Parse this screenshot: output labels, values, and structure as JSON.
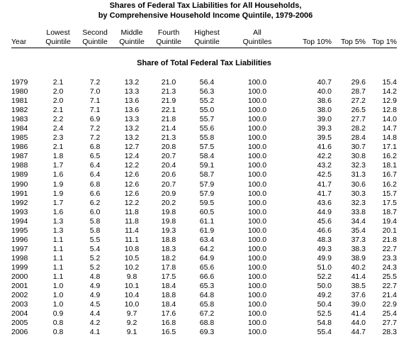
{
  "title_line1": "Shares of Federal Tax Liabilities for All Households,",
  "title_line2": "by Comprehensive Household Income Quintile, 1979-2006",
  "section_title": "Share of Total Federal Tax Liabilities",
  "headers": [
    {
      "top": "",
      "bottom": "Year"
    },
    {
      "top": "Lowest",
      "bottom": "Quintile"
    },
    {
      "top": "Second",
      "bottom": "Quintile"
    },
    {
      "top": "Middle",
      "bottom": "Quintile"
    },
    {
      "top": "Fourth",
      "bottom": "Quintile"
    },
    {
      "top": "Highest",
      "bottom": "Quintile"
    },
    {
      "top": "All",
      "bottom": "Quintiles"
    },
    {
      "top": "",
      "bottom": "Top 10%"
    },
    {
      "top": "",
      "bottom": "Top 5%"
    },
    {
      "top": "",
      "bottom": "Top 1%"
    }
  ],
  "rows": [
    [
      "1979",
      "2.1",
      "7.2",
      "13.2",
      "21.0",
      "56.4",
      "100.0",
      "40.7",
      "29.6",
      "15.4"
    ],
    [
      "1980",
      "2.0",
      "7.0",
      "13.3",
      "21.3",
      "56.3",
      "100.0",
      "40.0",
      "28.7",
      "14.2"
    ],
    [
      "1981",
      "2.0",
      "7.1",
      "13.6",
      "21.9",
      "55.2",
      "100.0",
      "38.6",
      "27.2",
      "12.9"
    ],
    [
      "1982",
      "2.1",
      "7.1",
      "13.6",
      "22.1",
      "55.0",
      "100.0",
      "38.0",
      "26.5",
      "12.8"
    ],
    [
      "1983",
      "2.2",
      "6.9",
      "13.3",
      "21.8",
      "55.7",
      "100.0",
      "39.0",
      "27.7",
      "14.0"
    ],
    [
      "1984",
      "2.4",
      "7.2",
      "13.2",
      "21.4",
      "55.6",
      "100.0",
      "39.3",
      "28.2",
      "14.7"
    ],
    [
      "1985",
      "2.3",
      "7.2",
      "13.2",
      "21.3",
      "55.8",
      "100.0",
      "39.5",
      "28.4",
      "14.8"
    ],
    [
      "1986",
      "2.1",
      "6.8",
      "12.7",
      "20.8",
      "57.5",
      "100.0",
      "41.6",
      "30.7",
      "17.1"
    ],
    [
      "1987",
      "1.8",
      "6.5",
      "12.4",
      "20.7",
      "58.4",
      "100.0",
      "42.2",
      "30.8",
      "16.2"
    ],
    [
      "1988",
      "1.7",
      "6.4",
      "12.2",
      "20.4",
      "59.1",
      "100.0",
      "43.2",
      "32.3",
      "18.1"
    ],
    [
      "1989",
      "1.6",
      "6.4",
      "12.6",
      "20.6",
      "58.7",
      "100.0",
      "42.5",
      "31.3",
      "16.7"
    ],
    [
      "1990",
      "1.9",
      "6.8",
      "12.6",
      "20.7",
      "57.9",
      "100.0",
      "41.7",
      "30.6",
      "16.2"
    ],
    [
      "1991",
      "1.9",
      "6.6",
      "12.6",
      "20.9",
      "57.9",
      "100.0",
      "41.7",
      "30.3",
      "15.7"
    ],
    [
      "1992",
      "1.7",
      "6.2",
      "12.2",
      "20.2",
      "59.5",
      "100.0",
      "43.6",
      "32.3",
      "17.5"
    ],
    [
      "1993",
      "1.6",
      "6.0",
      "11.8",
      "19.8",
      "60.5",
      "100.0",
      "44.9",
      "33.8",
      "18.7"
    ],
    [
      "1994",
      "1.3",
      "5.8",
      "11.8",
      "19.8",
      "61.1",
      "100.0",
      "45.6",
      "34.4",
      "19.4"
    ],
    [
      "1995",
      "1.3",
      "5.8",
      "11.4",
      "19.3",
      "61.9",
      "100.0",
      "46.6",
      "35.4",
      "20.1"
    ],
    [
      "1996",
      "1.1",
      "5.5",
      "11.1",
      "18.8",
      "63.4",
      "100.0",
      "48.3",
      "37.3",
      "21.8"
    ],
    [
      "1997",
      "1.1",
      "5.4",
      "10.8",
      "18.3",
      "64.2",
      "100.0",
      "49.3",
      "38.3",
      "22.7"
    ],
    [
      "1998",
      "1.1",
      "5.2",
      "10.5",
      "18.2",
      "64.9",
      "100.0",
      "49.9",
      "38.9",
      "23.3"
    ],
    [
      "1999",
      "1.1",
      "5.2",
      "10.2",
      "17.8",
      "65.6",
      "100.0",
      "51.0",
      "40.2",
      "24.3"
    ],
    [
      "2000",
      "1.1",
      "4.8",
      "9.8",
      "17.5",
      "66.6",
      "100.0",
      "52.2",
      "41.4",
      "25.5"
    ],
    [
      "2001",
      "1.0",
      "4.9",
      "10.1",
      "18.4",
      "65.3",
      "100.0",
      "50.0",
      "38.5",
      "22.7"
    ],
    [
      "2002",
      "1.0",
      "4.9",
      "10.4",
      "18.8",
      "64.8",
      "100.0",
      "49.2",
      "37.6",
      "21.4"
    ],
    [
      "2003",
      "1.0",
      "4.5",
      "10.0",
      "18.4",
      "65.8",
      "100.0",
      "50.4",
      "39.0",
      "22.9"
    ],
    [
      "2004",
      "0.9",
      "4.4",
      "9.7",
      "17.6",
      "67.2",
      "100.0",
      "52.5",
      "41.4",
      "25.4"
    ],
    [
      "2005",
      "0.8",
      "4.2",
      "9.2",
      "16.8",
      "68.8",
      "100.0",
      "54.8",
      "44.0",
      "27.7"
    ],
    [
      "2006",
      "0.8",
      "4.1",
      "9.1",
      "16.5",
      "69.3",
      "100.0",
      "55.4",
      "44.7",
      "28.3"
    ]
  ]
}
